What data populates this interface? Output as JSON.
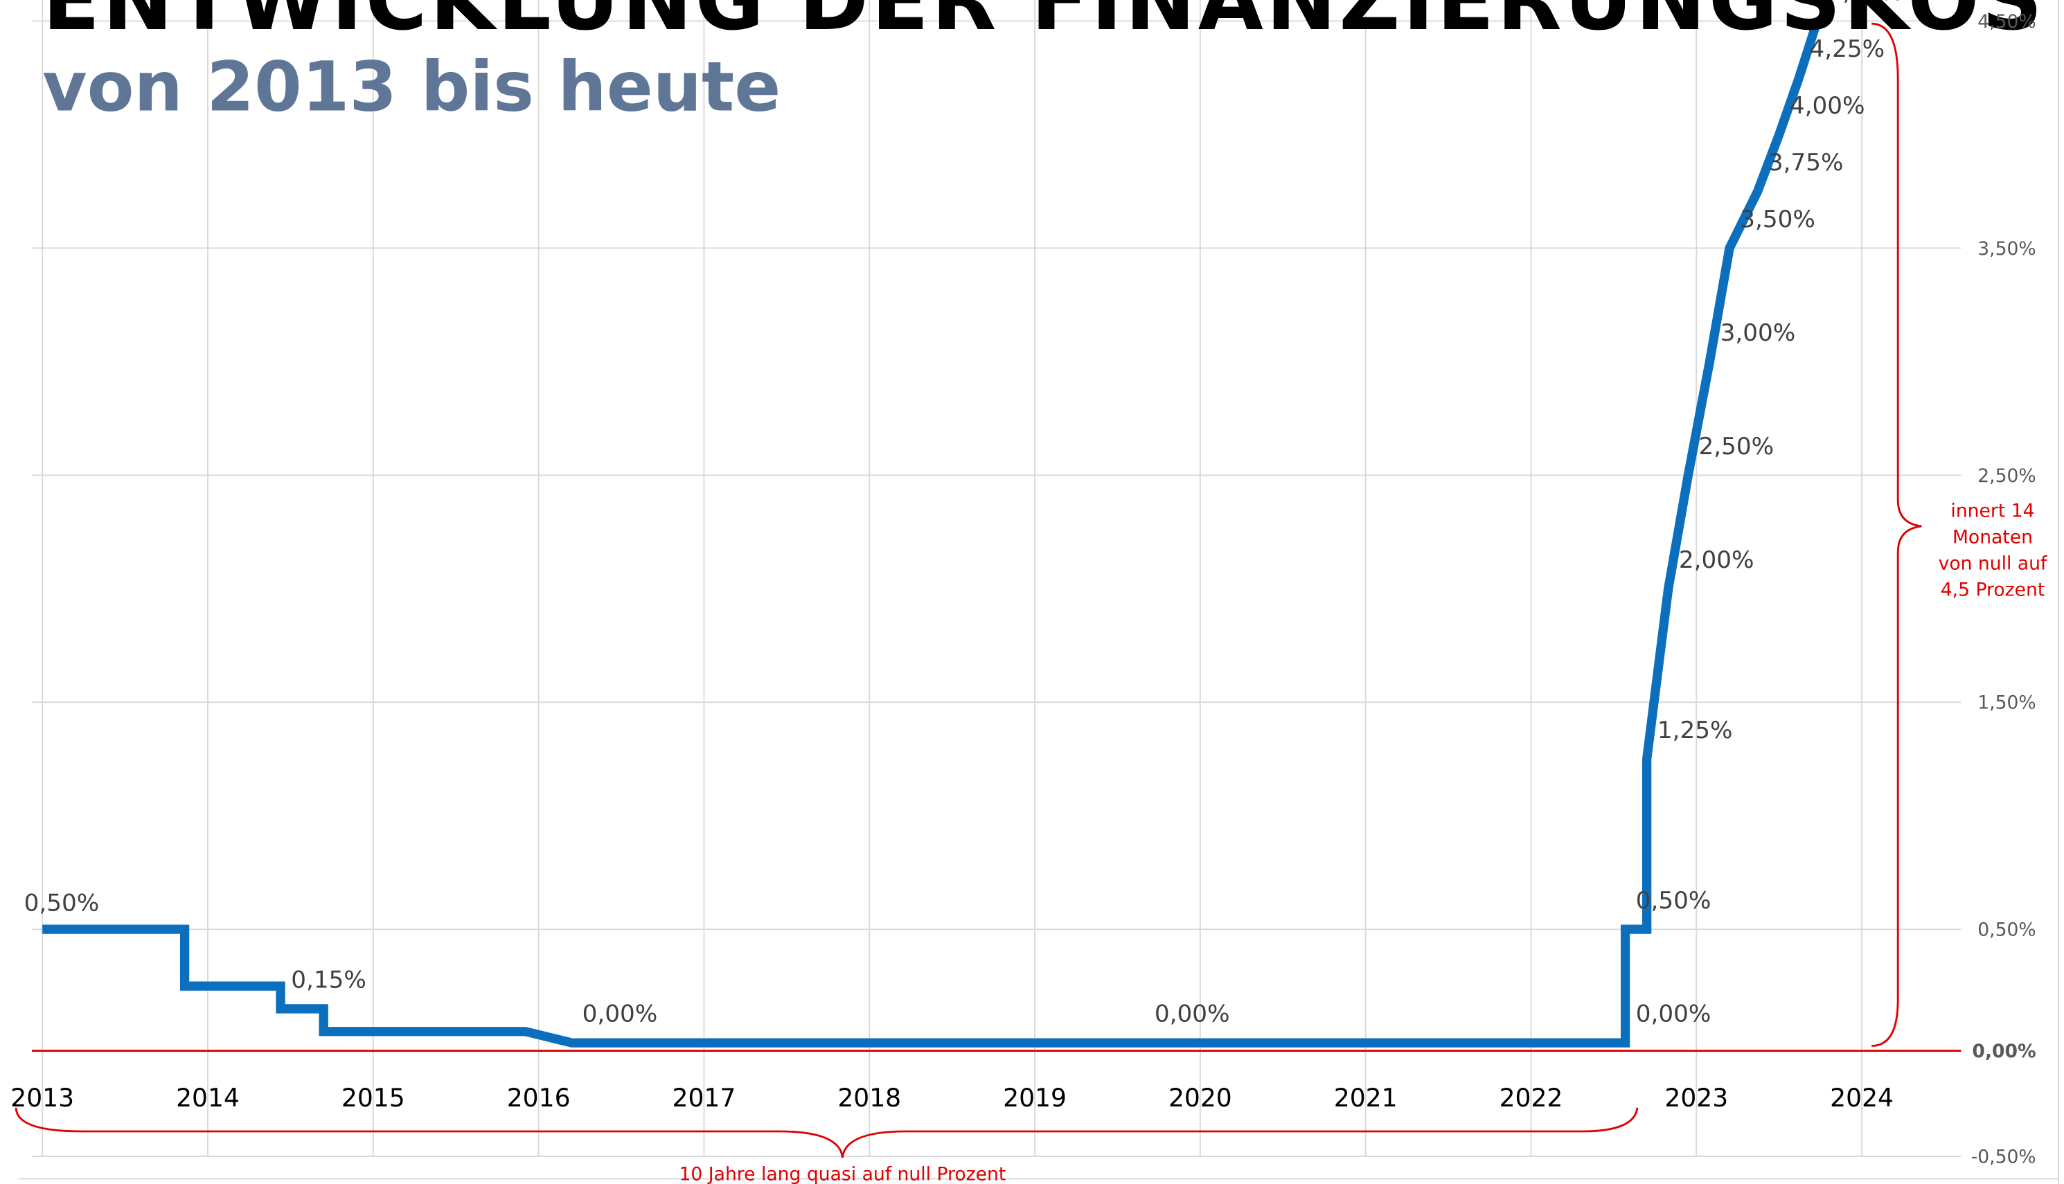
{
  "chart_data": {
    "type": "line",
    "title": "ENTWICKLUNG DER FINANZIERUNGSKOSTEN",
    "subtitle": "von 2013 bis heute",
    "x": [
      2013.0,
      2013.86,
      2013.86,
      2014.44,
      2014.44,
      2014.7,
      2014.7,
      2015.92,
      2016.2,
      2019.66,
      2022.57,
      2022.57,
      2022.7,
      2022.7,
      2022.83,
      2022.95,
      2023.08,
      2023.2,
      2023.37,
      2023.5,
      2023.62,
      2023.73
    ],
    "series": [
      {
        "color": "#0b6fbe",
        "values": [
          0.5,
          0.5,
          0.25,
          0.25,
          0.15,
          0.15,
          0.05,
          0.05,
          0,
          0,
          0,
          0.5,
          0.5,
          1.25,
          2.0,
          2.5,
          3.0,
          3.5,
          3.75,
          4.0,
          4.25,
          4.5
        ],
        "value_labels": [
          "0,50%",
          null,
          null,
          null,
          "0,15%",
          null,
          null,
          null,
          "0,00%",
          "0,00%",
          "0,00%",
          "0,50%",
          null,
          "1,25%",
          "2,00%",
          "2,50%",
          "3,00%",
          "3,50%",
          "3,75%",
          "4,00%",
          "4,25%",
          "4,50%"
        ]
      }
    ],
    "xlim": [
      2013,
      2024.6
    ],
    "xticks": [
      2013,
      2014,
      2015,
      2016,
      2017,
      2018,
      2019,
      2020,
      2021,
      2022,
      2023,
      2024
    ],
    "ylim": [
      -0.5,
      4.5
    ],
    "yticks": [
      {
        "value": -0.5,
        "label": "-0,50%"
      },
      {
        "value": 0,
        "label": "0,00%"
      },
      {
        "value": 0.5,
        "label": "0,50%"
      },
      {
        "value": 1.5,
        "label": "1,50%"
      },
      {
        "value": 2.5,
        "label": "2,50%"
      },
      {
        "value": 3.5,
        "label": "3,50%"
      },
      {
        "value": 4.5,
        "label": "4,50%"
      }
    ],
    "grid": true,
    "annotations": {
      "bottom": "10 Jahre lang quasi auf null Prozent",
      "right": [
        "innert 14",
        "Monaten",
        "von null auf",
        "4,5 Prozent"
      ]
    }
  }
}
